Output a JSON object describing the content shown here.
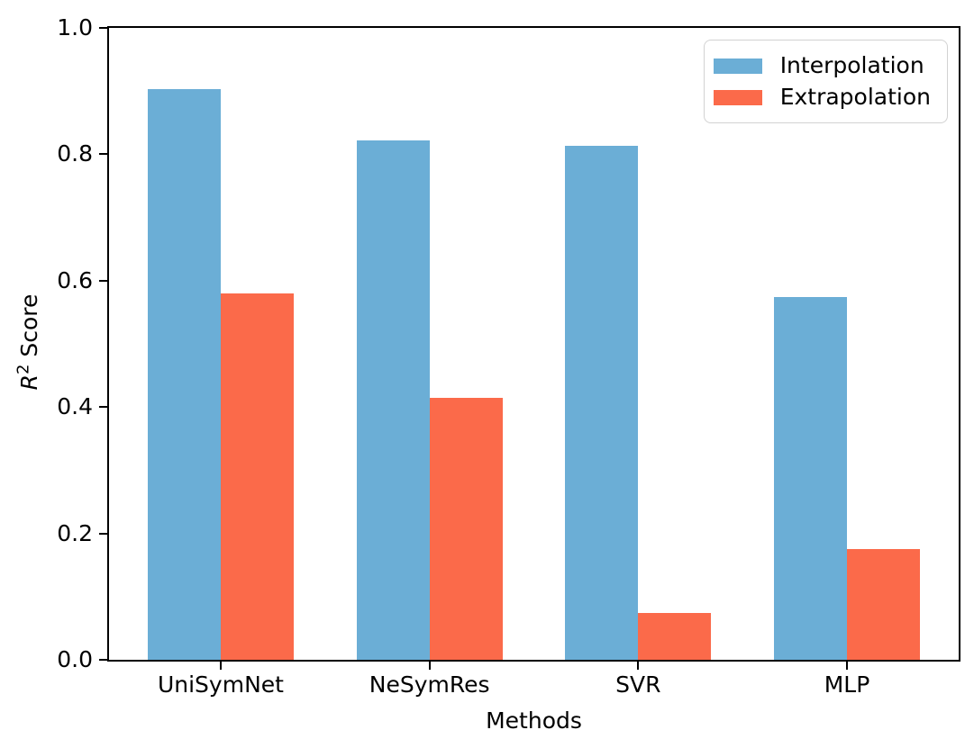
{
  "chart_data": {
    "type": "bar",
    "title": "",
    "xlabel": "Methods",
    "ylabel": "R² Score",
    "ylabel_parts": {
      "r": "R",
      "sup": "2",
      "rest": " Score"
    },
    "categories": [
      "UniSymNet",
      "NeSymRes",
      "SVR",
      "MLP"
    ],
    "series": [
      {
        "name": "Interpolation",
        "color": "#6BAED6",
        "values": [
          0.903,
          0.822,
          0.813,
          0.574
        ]
      },
      {
        "name": "Extrapolation",
        "color": "#FB6A4A",
        "values": [
          0.58,
          0.415,
          0.074,
          0.175
        ]
      }
    ],
    "ylim": [
      0.0,
      1.0
    ],
    "yticks": [
      "0.0",
      "0.2",
      "0.4",
      "0.6",
      "0.8",
      "1.0"
    ],
    "grid": false,
    "legend_position": "upper right",
    "bar_width_data_units": 0.35
  }
}
